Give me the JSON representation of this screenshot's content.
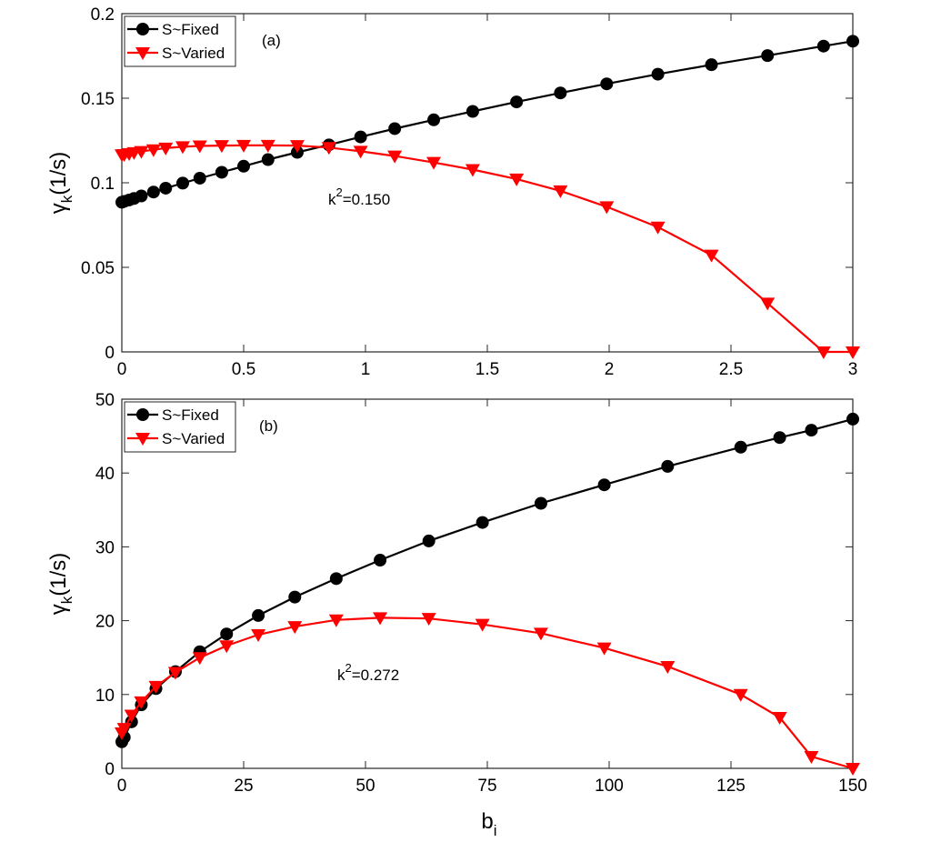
{
  "chart_data": [
    {
      "type": "line",
      "panel_label": "(a)",
      "annotation": {
        "base": "k",
        "sup": "2",
        "rest": "=0.150"
      },
      "xlabel": "",
      "ylabel": {
        "main": "γ",
        "sub": "k",
        "unit": "(1/s)"
      },
      "xlim": [
        0,
        3
      ],
      "ylim": [
        0,
        0.2
      ],
      "xticks": [
        0,
        0.5,
        1,
        1.5,
        2,
        2.5,
        3
      ],
      "xtick_labels": [
        "0",
        "0.5",
        "1",
        "1.5",
        "2",
        "2.5",
        "3"
      ],
      "yticks": [
        0,
        0.05,
        0.1,
        0.15,
        0.2
      ],
      "ytick_labels": [
        "0",
        "0.05",
        "0.1",
        "0.15",
        "0.2"
      ],
      "legend_position": "top-left",
      "series": [
        {
          "name": "S~Fixed",
          "color": "#000000",
          "marker": "circle",
          "x": [
            0,
            0.01,
            0.03,
            0.05,
            0.08,
            0.13,
            0.18,
            0.25,
            0.32,
            0.41,
            0.5,
            0.6,
            0.72,
            0.85,
            0.98,
            1.12,
            1.28,
            1.44,
            1.62,
            1.8,
            1.99,
            2.2,
            2.42,
            2.65,
            2.88,
            3.0
          ],
          "y": [
            0.0885,
            0.089,
            0.0898,
            0.0907,
            0.0922,
            0.0945,
            0.0968,
            0.0998,
            0.1027,
            0.1062,
            0.1098,
            0.1137,
            0.118,
            0.1224,
            0.1271,
            0.132,
            0.1372,
            0.1422,
            0.1478,
            0.1531,
            0.1585,
            0.1642,
            0.1698,
            0.1752,
            0.1808,
            0.1837
          ]
        },
        {
          "name": "S~Varied",
          "color": "#ff0000",
          "marker": "triangle-down",
          "x": [
            0,
            0.01,
            0.03,
            0.05,
            0.08,
            0.13,
            0.18,
            0.25,
            0.32,
            0.41,
            0.5,
            0.6,
            0.72,
            0.85,
            0.98,
            1.12,
            1.28,
            1.44,
            1.62,
            1.8,
            1.99,
            2.2,
            2.42,
            2.65,
            2.88,
            3.0
          ],
          "y": [
            0.1165,
            0.1167,
            0.1172,
            0.1178,
            0.1185,
            0.1195,
            0.1205,
            0.1213,
            0.1218,
            0.122,
            0.1221,
            0.1221,
            0.122,
            0.1208,
            0.1186,
            0.1158,
            0.112,
            0.1078,
            0.1022,
            0.0952,
            0.0858,
            0.0738,
            0.0572,
            0.0288,
            0.0,
            0.0
          ]
        }
      ]
    },
    {
      "type": "line",
      "panel_label": "(b)",
      "annotation": {
        "base": "k",
        "sup": "2",
        "rest": "=0.272"
      },
      "xlabel": {
        "main": "b",
        "sub": "i"
      },
      "ylabel": {
        "main": "γ",
        "sub": "k",
        "unit": "(1/s)"
      },
      "xlim": [
        0,
        150
      ],
      "ylim": [
        0,
        50
      ],
      "xticks": [
        0,
        25,
        50,
        75,
        100,
        125,
        150
      ],
      "xtick_labels": [
        "0",
        "25",
        "50",
        "75",
        "100",
        "125",
        "150"
      ],
      "yticks": [
        0,
        10,
        20,
        30,
        40,
        50
      ],
      "ytick_labels": [
        "0",
        "10",
        "20",
        "30",
        "40",
        "50"
      ],
      "legend_position": "top-left",
      "series": [
        {
          "name": "S~Fixed",
          "color": "#000000",
          "marker": "circle",
          "x": [
            0,
            0.5,
            2,
            4,
            7,
            11,
            16,
            21.5,
            28,
            35.5,
            44,
            53,
            63,
            74,
            86,
            99,
            112,
            127,
            135,
            141.5,
            150
          ],
          "y": [
            3.6,
            4.2,
            6.3,
            8.6,
            10.8,
            13.1,
            15.8,
            18.2,
            20.7,
            23.2,
            25.7,
            28.2,
            30.8,
            33.3,
            35.9,
            38.4,
            40.9,
            43.5,
            44.8,
            45.8,
            47.3
          ]
        },
        {
          "name": "S~Varied",
          "color": "#ff0000",
          "marker": "triangle-down",
          "x": [
            0,
            0.5,
            2,
            4,
            7,
            11,
            16,
            21.5,
            28,
            35.5,
            44,
            53,
            63,
            74,
            86,
            99,
            112,
            127,
            135,
            141.5,
            150
          ],
          "y": [
            4.8,
            5.4,
            7.2,
            9.0,
            11.1,
            13.0,
            15.0,
            16.6,
            18.1,
            19.2,
            20.1,
            20.4,
            20.3,
            19.5,
            18.3,
            16.3,
            13.8,
            10.0,
            6.9,
            1.6,
            0.0
          ]
        }
      ]
    }
  ]
}
